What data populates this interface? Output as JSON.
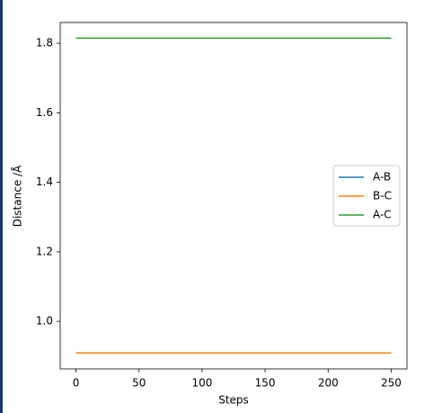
{
  "chart_data": {
    "type": "line",
    "xlabel": "Steps",
    "ylabel": "Distance /Å",
    "x": [
      0,
      250
    ],
    "series": [
      {
        "name": "A-B",
        "color": "#1f77b4",
        "values": [
          0.909,
          0.909
        ]
      },
      {
        "name": "B-C",
        "color": "#ff7f0e",
        "values": [
          0.909,
          0.909
        ]
      },
      {
        "name": "A-C",
        "color": "#2ca02c",
        "values": [
          1.815,
          1.815
        ]
      }
    ],
    "xlim": [
      -12.5,
      262.5
    ],
    "xticks": [
      0,
      50,
      100,
      150,
      200,
      250
    ],
    "ylim": [
      0.863,
      1.86
    ],
    "yticks": [
      {
        "value": 1,
        "label": "1.0"
      },
      1.2,
      1.4,
      1.6,
      1.8
    ],
    "grid": false,
    "legend": "center right"
  }
}
